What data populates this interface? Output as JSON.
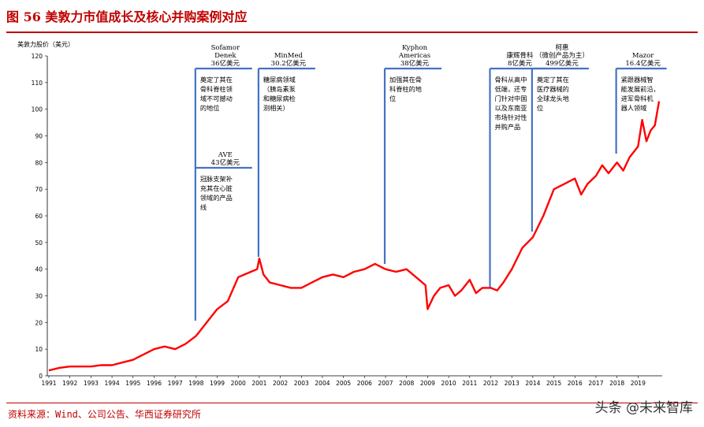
{
  "figure": {
    "title": "图 56   美敦力市值成长及核心并购案例对应",
    "source": "资料来源：Wind、公司公告、华西证券研究所",
    "watermark": "头条 @未来智库"
  },
  "colors": {
    "line": "#ff0000",
    "annotation": "#4472c4",
    "accent": "#c00000",
    "axis": "#000000"
  },
  "chart_data": {
    "type": "line",
    "ylabel": "美敦力股价（美元）",
    "xlabel": "",
    "ylim": [
      0,
      120
    ],
    "yticks": [
      0,
      10,
      20,
      30,
      40,
      50,
      60,
      70,
      80,
      90,
      100,
      110,
      120
    ],
    "xlim": [
      1991,
      2020
    ],
    "xticks": [
      "1991",
      "1992",
      "1993",
      "1994",
      "1995",
      "1996",
      "1997",
      "1998",
      "1999",
      "2000",
      "2001",
      "2002",
      "2003",
      "2004",
      "2005",
      "2006",
      "2007",
      "2008",
      "2009",
      "2010",
      "2011",
      "2012",
      "2013",
      "2014",
      "2015",
      "2016",
      "2017",
      "2018",
      "2019"
    ],
    "grid": false,
    "series": [
      {
        "x": [
          1991,
          1991.5,
          1992,
          1992.5,
          1993,
          1993.5,
          1994,
          1994.5,
          1995,
          1995.5,
          1996,
          1996.5,
          1997,
          1997.5,
          1998,
          1998.5,
          1999,
          1999.5,
          2000,
          2000.3,
          2000.6,
          2000.9,
          2001,
          2001.2,
          2001.5,
          2002,
          2002.5,
          2003,
          2003.5,
          2004,
          2004.5,
          2005,
          2005.5,
          2006,
          2006.5,
          2007,
          2007.5,
          2008,
          2008.3,
          2008.6,
          2008.9,
          2009,
          2009.3,
          2009.6,
          2010,
          2010.3,
          2010.6,
          2011,
          2011.3,
          2011.6,
          2012,
          2012.3,
          2012.6,
          2013,
          2013.5,
          2014,
          2014.5,
          2015,
          2015.5,
          2016,
          2016.3,
          2016.6,
          2017,
          2017.3,
          2017.6,
          2018,
          2018.3,
          2018.6,
          2019,
          2019.2,
          2019.4,
          2019.6,
          2019.8,
          2020
        ],
        "y": [
          2,
          3,
          3.5,
          3.5,
          3.5,
          4,
          4,
          5,
          6,
          8,
          10,
          11,
          10,
          12,
          15,
          20,
          25,
          28,
          37,
          38,
          39,
          40,
          44,
          38,
          35,
          34,
          33,
          33,
          35,
          37,
          38,
          37,
          39,
          40,
          42,
          40,
          39,
          40,
          38,
          36,
          34,
          25,
          30,
          33,
          34,
          30,
          32,
          36,
          31,
          33,
          33,
          32,
          35,
          40,
          48,
          52,
          60,
          70,
          72,
          74,
          68,
          72,
          75,
          79,
          76,
          80,
          77,
          82,
          86,
          96,
          88,
          92,
          94,
          103
        ]
      }
    ],
    "annotations": [
      {
        "year": 1998,
        "label_lines": [
          "Sofamor",
          "Denek",
          "36亿美元"
        ],
        "text_lines": [
          "奠定了其在",
          "骨科脊柱领",
          "域不可撼动",
          "的地位"
        ]
      },
      {
        "year": 1998,
        "label_lines": [
          "AVE",
          "43亿美元"
        ],
        "text_lines": [
          "冠脉支架补",
          "充其在心脏",
          "领域的产品",
          "线"
        ]
      },
      {
        "year": 2001,
        "label_lines": [
          "MinMed",
          "30.2亿美元"
        ],
        "text_lines": [
          "糖尿病领域",
          "（胰岛素泵",
          "和糖尿病检",
          "测相关）"
        ]
      },
      {
        "year": 2007,
        "label_lines": [
          "Kyphon",
          "Americas",
          "38亿美元"
        ],
        "text_lines": [
          "加强其在骨",
          "科脊柱的地",
          "位"
        ]
      },
      {
        "year": 2012,
        "label_lines": [
          "康辉骨科",
          "8亿美元"
        ],
        "text_lines": [
          "骨科从高中",
          "低端，还专",
          "门针对中国",
          "以及东南亚",
          "市场针对性",
          "并购产品"
        ]
      },
      {
        "year": 2014,
        "label_lines": [
          "柯惠",
          "（微创产品为主）",
          "499亿美元"
        ],
        "text_lines": [
          "奠定了其在",
          "医疗器械的",
          "全球龙头地",
          "位"
        ]
      },
      {
        "year": 2018,
        "label_lines": [
          "Mazor",
          "16.4亿美元"
        ],
        "text_lines": [
          "紧跟器械智",
          "能发展前沿，",
          "进军骨科机",
          "器人领域"
        ]
      }
    ]
  }
}
